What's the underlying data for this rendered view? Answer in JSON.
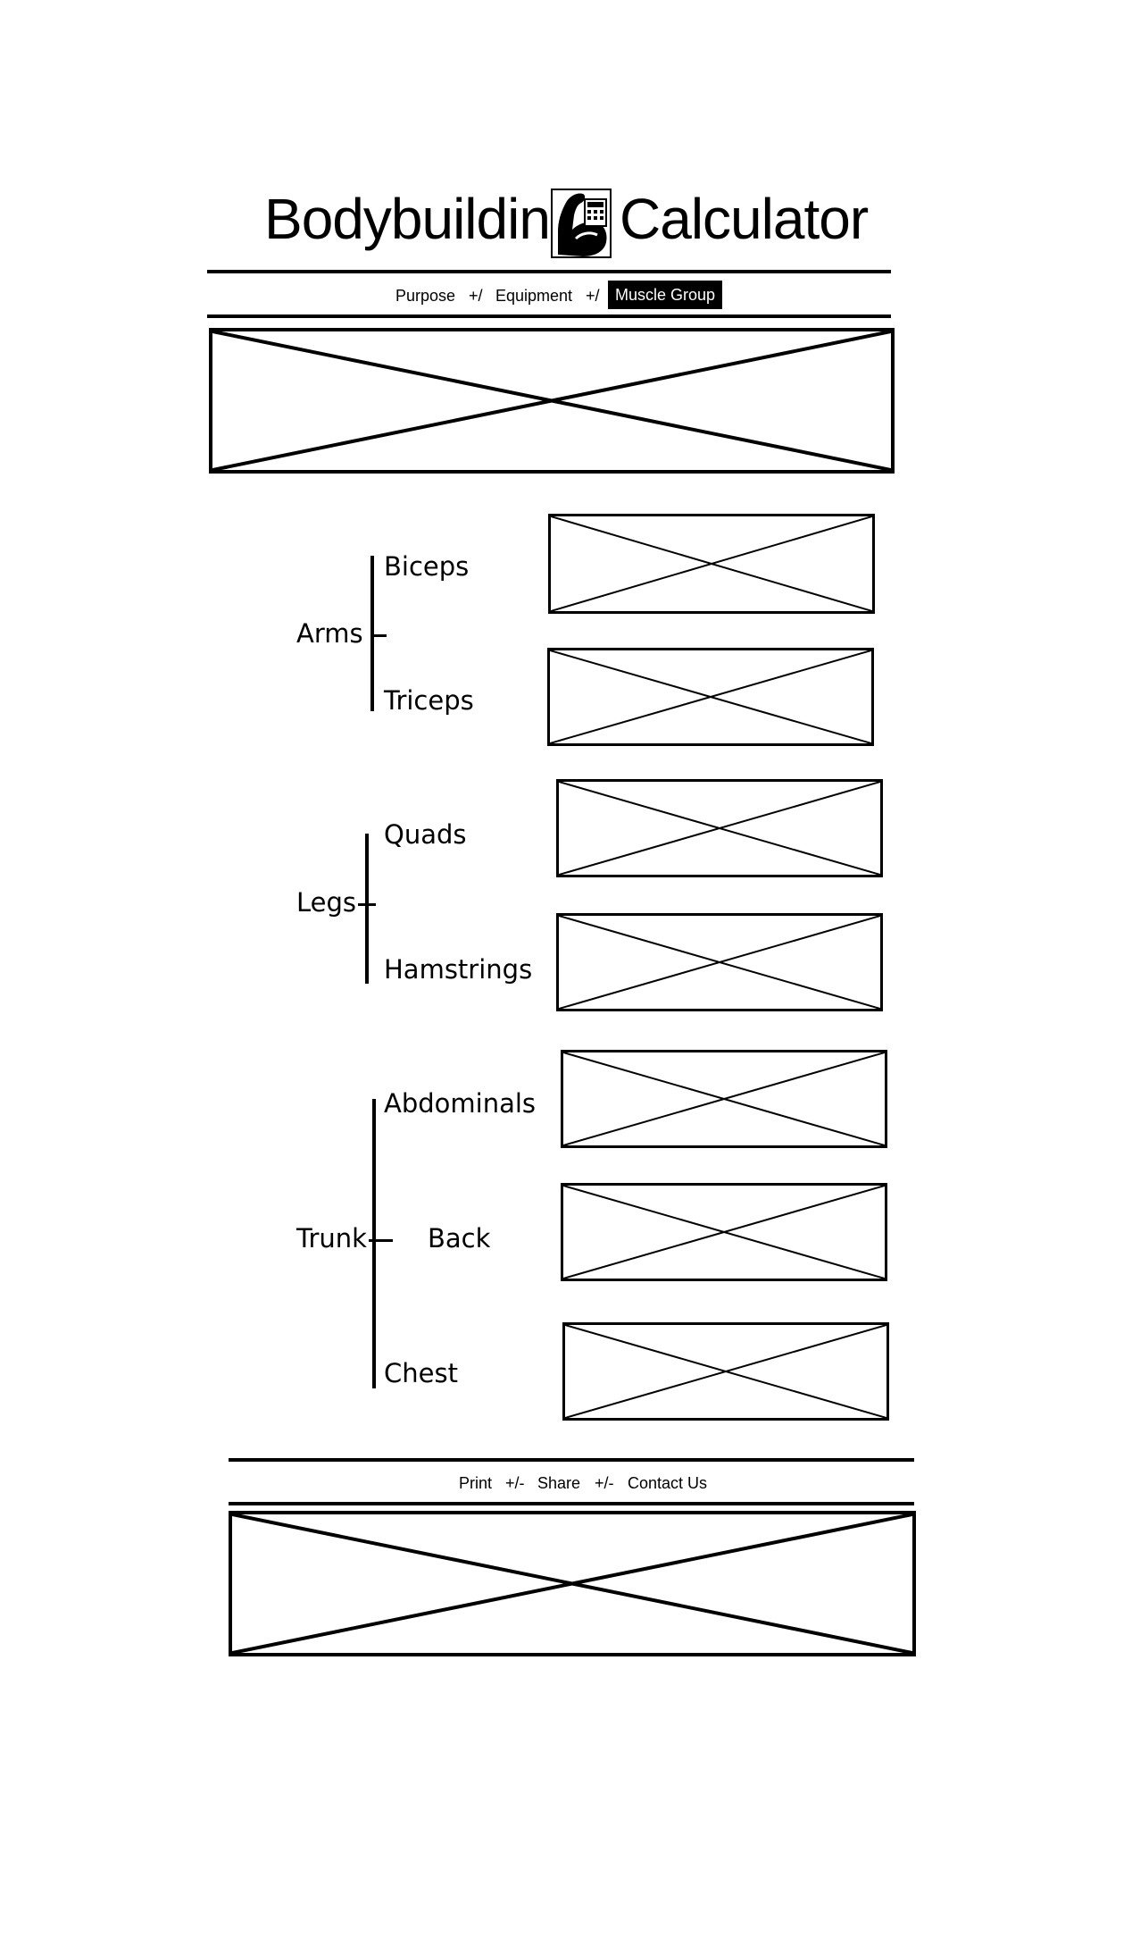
{
  "header": {
    "title_left": "Bodybuilding",
    "title_right": "Calculator",
    "logo_icon": "flexed-arm-calculator-icon"
  },
  "nav": {
    "items": [
      {
        "label": "Purpose"
      },
      {
        "label": "Equipment"
      },
      {
        "label": "Muscle Group",
        "active": true
      }
    ],
    "separators": [
      "+/",
      "+/"
    ]
  },
  "muscle_groups": [
    {
      "label": "Arms",
      "muscles": [
        "Biceps",
        "Triceps"
      ]
    },
    {
      "label": "Legs",
      "muscles": [
        "Quads",
        "Hamstrings"
      ]
    },
    {
      "label": "Trunk",
      "muscles": [
        "Abdominals",
        "Back",
        "Chest"
      ]
    }
  ],
  "footer_nav": {
    "items": [
      "Print",
      "Share",
      "Contact Us"
    ],
    "separators": [
      "+/-",
      "+/-"
    ]
  }
}
